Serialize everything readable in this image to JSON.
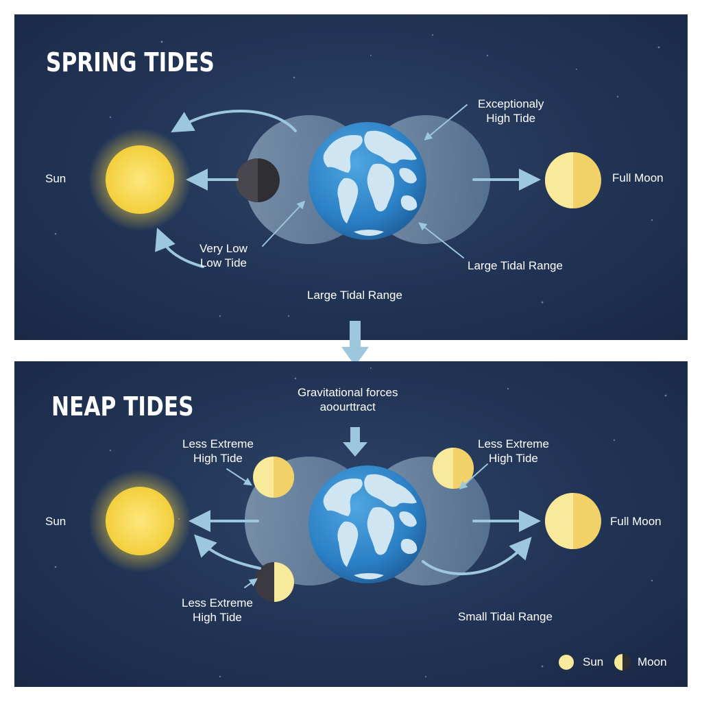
{
  "spring": {
    "title": "SPRING TIDES",
    "sun_label": "Sun",
    "moon_label": "Full Moon",
    "high_tide_line1": "Exceptionaly",
    "high_tide_line2": "High Tide",
    "low_tide_line1": "Very Low",
    "low_tide_line2": "Low Tide",
    "range_right": "Large Tidal Range",
    "range_bottom": "Large Tidal Range"
  },
  "neap": {
    "title": "NEAP TIDES",
    "forces_line1": "Gravitational forces",
    "forces_line2": "aoourttract",
    "tide_left_top_line1": "Less Extreme",
    "tide_left_top_line2": "High Tide",
    "tide_right_top_line1": "Less Extreme",
    "tide_right_top_line2": "High Tide",
    "tide_left_bottom_line1": "Less Extreme",
    "tide_left_bottom_line2": "High Tide",
    "sun_label": "Sun",
    "moon_label": "Full Moon",
    "range_label": "Small Tidal Range"
  },
  "legend": {
    "sun": "Sun",
    "moon": "Moon"
  },
  "colors": {
    "background_top": "#2e4468",
    "background_edge": "#1a2846",
    "sun": "#f7d94c",
    "moon_light": "#f8ea9a",
    "moon_dark": "#f2d168",
    "new_moon": "#2f2f33",
    "earth_ocean": "#2f86c9",
    "earth_land": "#cfe6f2",
    "tidal_bulge": "#a9c7dc",
    "arrow": "#9cc7dd"
  }
}
